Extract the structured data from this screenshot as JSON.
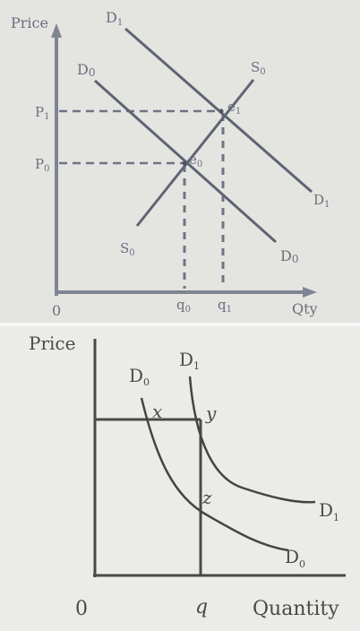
{
  "top_diagram": {
    "y_axis_label": "Price",
    "x_axis_label": "Qty",
    "origin_label": "0",
    "price_labels": {
      "p1": "P",
      "p1_sub": "1",
      "p0": "P",
      "p0_sub": "0"
    },
    "quantity_labels": {
      "q0": "q",
      "q0_sub": "0",
      "q1": "q",
      "q1_sub": "1"
    },
    "curves": {
      "d1_top": "D",
      "d1_top_sub": "1",
      "d1_end": "D",
      "d1_end_sub": "1",
      "d0_top": "D",
      "d0_top_sub": "0",
      "d0_end": "D",
      "d0_end_sub": "0",
      "s0_top": "S",
      "s0_top_sub": "0",
      "s0_bottom": "S",
      "s0_bottom_sub": "0"
    },
    "points": {
      "e0": "e",
      "e0_sub": "0",
      "e1": "e",
      "e1_sub": "1"
    }
  },
  "bottom_diagram": {
    "y_axis_label": "Price",
    "x_axis_label": "Quantity",
    "origin_label": "0",
    "q_label": "q",
    "curves": {
      "d0_top": "D",
      "d0_top_sub": "0",
      "d1_top": "D",
      "d1_top_sub": "1",
      "d1_end": "D",
      "d1_end_sub": "1",
      "d0_end": "D",
      "d0_end_sub": "0"
    },
    "points": {
      "x": "x",
      "y": "y",
      "z": "z"
    }
  }
}
